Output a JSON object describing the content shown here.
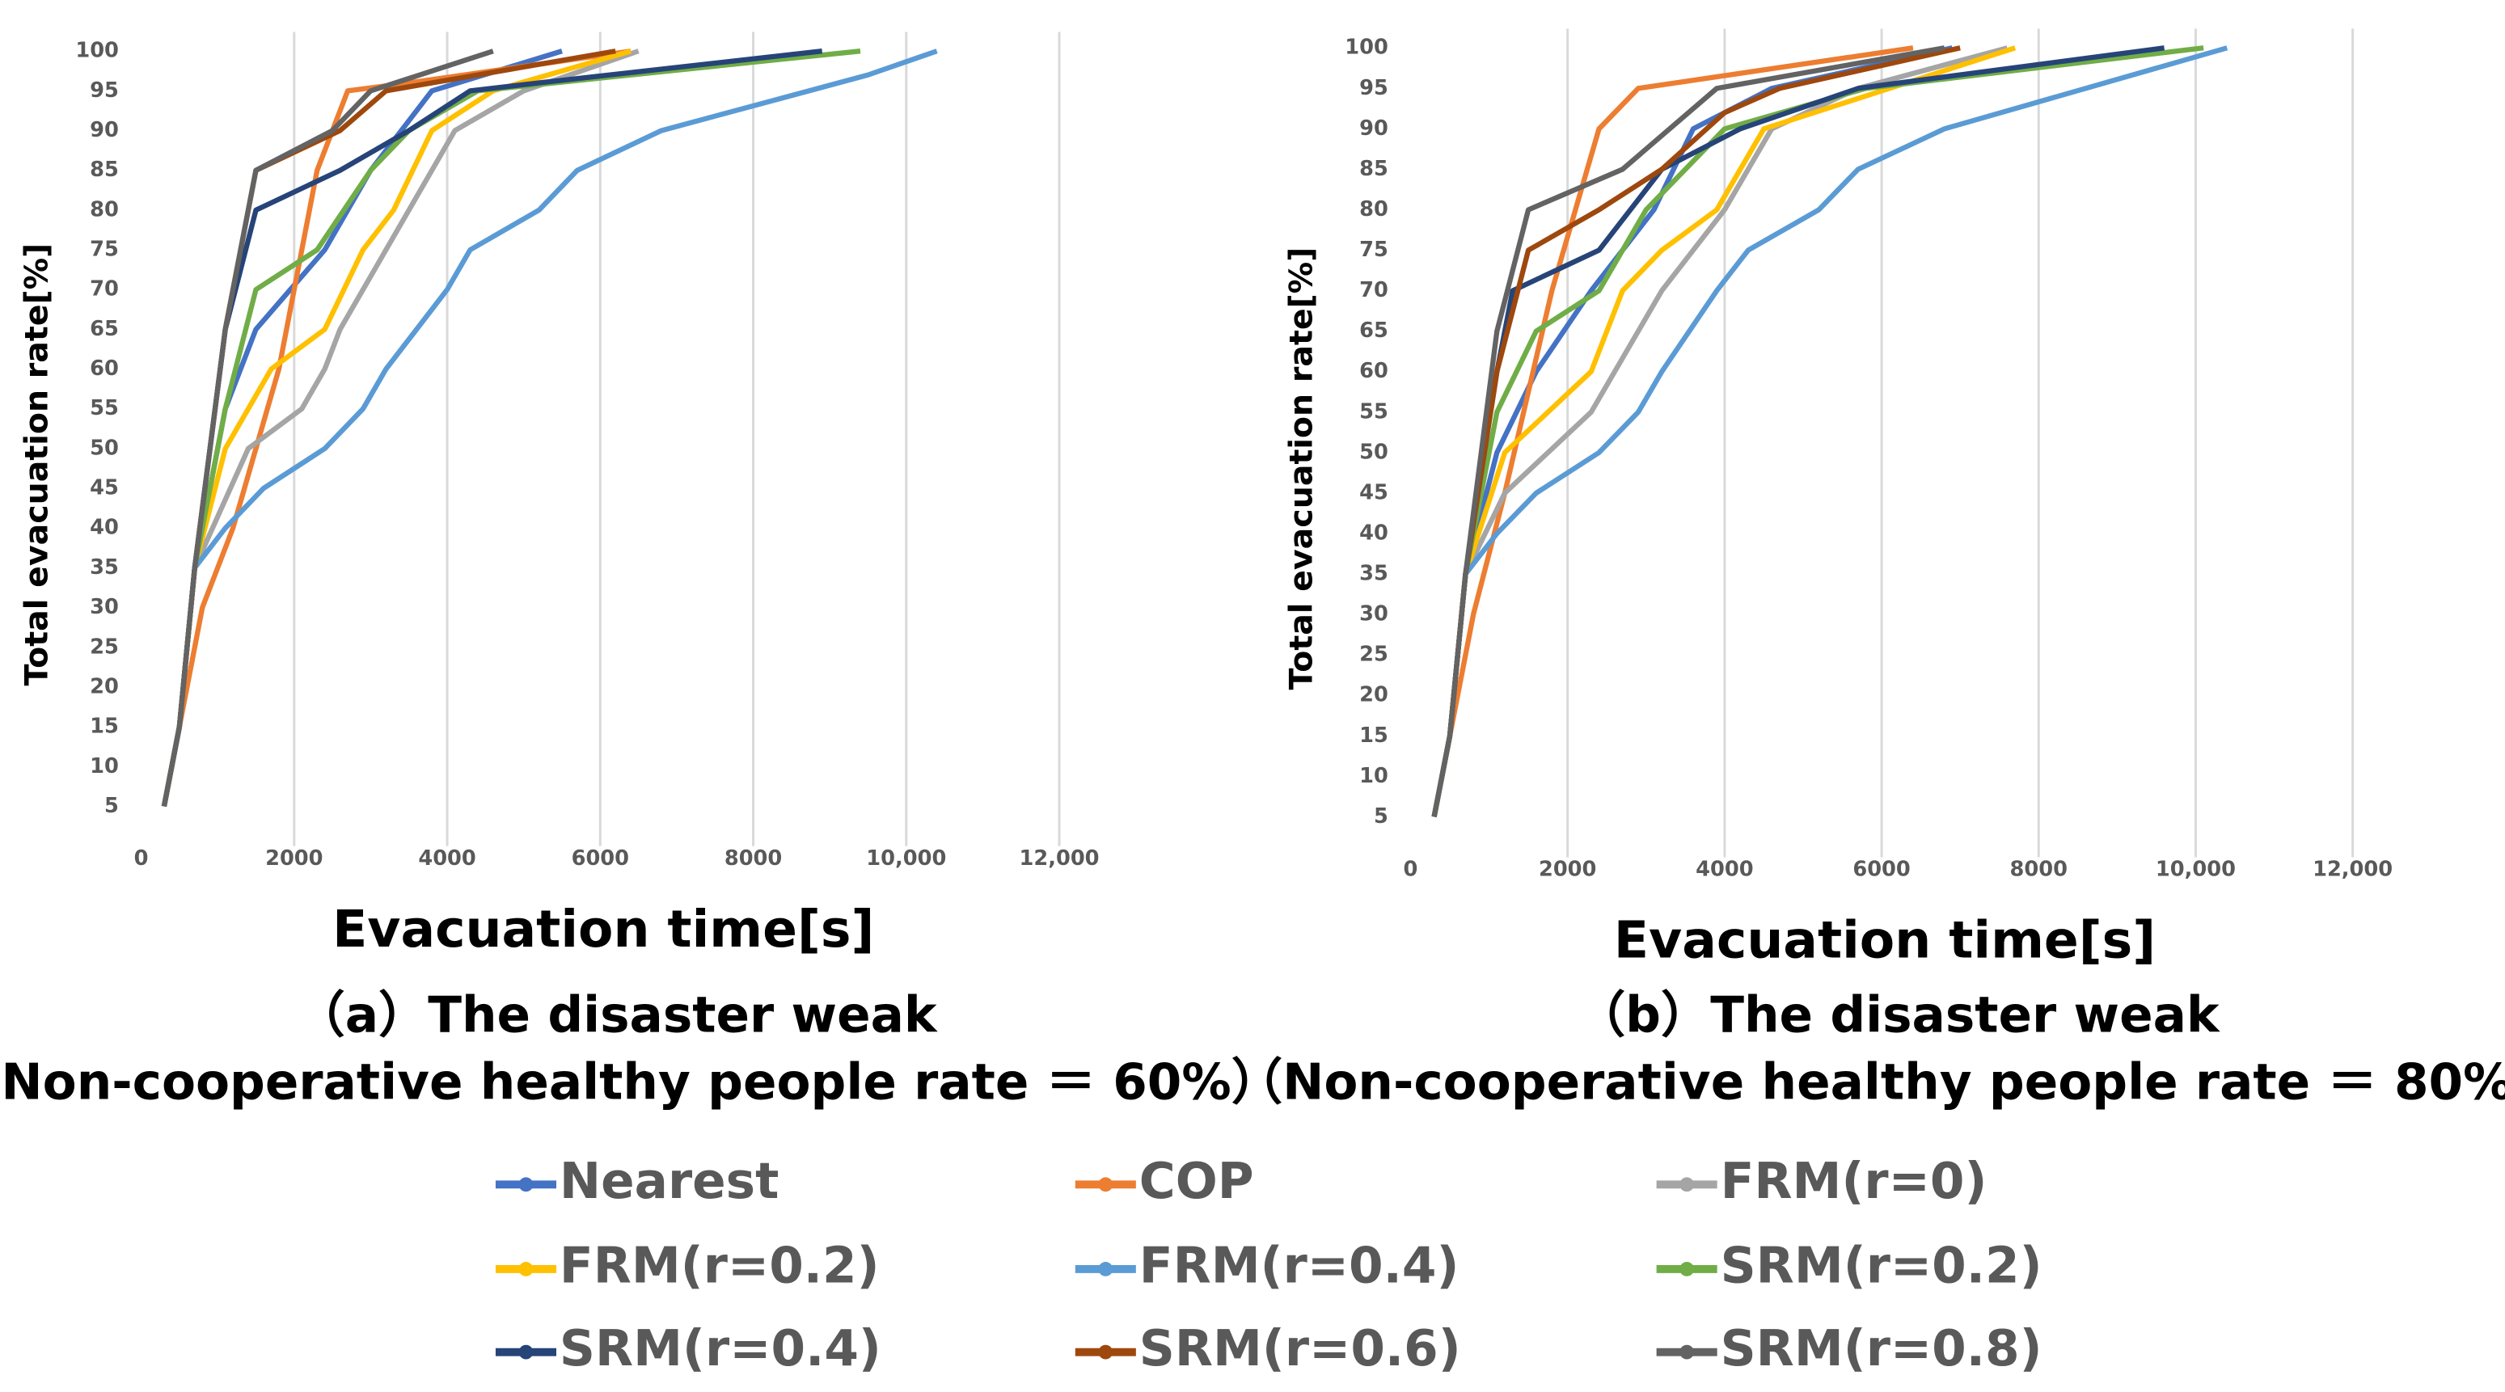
{
  "chart_data": [
    {
      "type": "line",
      "xlabel": "Evacuation time[s]",
      "ylabel": "Total evacuation rate[%]",
      "caption": [
        "（a）The disaster weak",
        "（Non-cooperative healthy people rate ＝ 60%）"
      ],
      "xlim": [
        0,
        12000
      ],
      "xticks": [
        0,
        2000,
        4000,
        6000,
        8000,
        {
          "value": 10000,
          "label": "10,000"
        },
        {
          "value": 12000,
          "label": "12,000"
        }
      ],
      "ylim": [
        0,
        100
      ],
      "yticks": [
        5,
        10,
        15,
        20,
        25,
        30,
        35,
        40,
        45,
        50,
        55,
        60,
        65,
        70,
        75,
        80,
        85,
        90,
        95,
        100
      ],
      "grid": true,
      "legend": "bottom",
      "series": [
        {
          "name": "Nearest",
          "color": "#4472c4",
          "x": [
            300,
            500,
            700,
            1100,
            1500,
            2400,
            3000,
            3800,
            5500
          ],
          "values": [
            5,
            15,
            35,
            55,
            65,
            75,
            85,
            95,
            100
          ]
        },
        {
          "name": "COP",
          "color": "#ed7d31",
          "x": [
            300,
            500,
            800,
            1200,
            1800,
            2300,
            2700,
            3500,
            6400
          ],
          "values": [
            5,
            15,
            30,
            40,
            60,
            85,
            95,
            96,
            100
          ]
        },
        {
          "name": "FRM(r=0)",
          "color": "#a5a5a5",
          "x": [
            300,
            500,
            700,
            1400,
            2100,
            2400,
            2600,
            3200,
            3800,
            4100,
            5000,
            6500
          ],
          "values": [
            5,
            15,
            35,
            50,
            55,
            60,
            65,
            75,
            85,
            90,
            95,
            100
          ]
        },
        {
          "name": "FRM(r=0.2)",
          "color": "#ffc000",
          "x": [
            300,
            500,
            700,
            1100,
            1700,
            2400,
            2900,
            3300,
            3800,
            4600,
            6400
          ],
          "values": [
            5,
            15,
            35,
            50,
            60,
            65,
            75,
            80,
            90,
            95,
            100
          ]
        },
        {
          "name": "FRM(r=0.4)",
          "color": "#5b9bd5",
          "x": [
            300,
            500,
            700,
            1100,
            1600,
            2400,
            2900,
            3200,
            4000,
            4300,
            5200,
            5700,
            6800,
            9500,
            10400
          ],
          "values": [
            5,
            15,
            35,
            40,
            45,
            50,
            55,
            60,
            70,
            75,
            80,
            85,
            90,
            97,
            100
          ]
        },
        {
          "name": "SRM(r=0.2)",
          "color": "#70ad47",
          "x": [
            300,
            500,
            700,
            1100,
            1500,
            2300,
            3000,
            3500,
            4400,
            9400
          ],
          "values": [
            5,
            15,
            35,
            55,
            70,
            75,
            85,
            90,
            95,
            100
          ]
        },
        {
          "name": "SRM(r=0.4)",
          "color": "#264478",
          "x": [
            300,
            500,
            700,
            1100,
            1500,
            2600,
            3500,
            4300,
            5200,
            8900
          ],
          "values": [
            5,
            15,
            35,
            65,
            80,
            85,
            90,
            95,
            96,
            100
          ]
        },
        {
          "name": "SRM(r=0.6)",
          "color": "#9e480e",
          "x": [
            300,
            500,
            700,
            1100,
            1500,
            2600,
            3200,
            6200
          ],
          "values": [
            5,
            15,
            35,
            65,
            85,
            90,
            95,
            100
          ]
        },
        {
          "name": "SRM(r=0.8)",
          "color": "#636363",
          "x": [
            300,
            500,
            700,
            1100,
            1500,
            2500,
            3000,
            4600
          ],
          "values": [
            5,
            15,
            35,
            65,
            85,
            90,
            95,
            100
          ]
        }
      ]
    },
    {
      "type": "line",
      "xlabel": "Evacuation time[s]",
      "ylabel": "Total evacuation rate[%]",
      "caption": [
        "（b）The disaster weak",
        "（Non-cooperative healthy people rate ＝ 80%）"
      ],
      "xlim": [
        0,
        12000
      ],
      "xticks": [
        0,
        2000,
        4000,
        6000,
        8000,
        {
          "value": 10000,
          "label": "10,000"
        },
        {
          "value": 12000,
          "label": "12,000"
        }
      ],
      "ylim": [
        0,
        100
      ],
      "yticks": [
        5,
        10,
        15,
        20,
        25,
        30,
        35,
        40,
        45,
        50,
        55,
        60,
        65,
        70,
        75,
        80,
        85,
        90,
        95,
        100
      ],
      "grid": true,
      "series": [
        {
          "name": "Nearest",
          "color": "#4472c4",
          "x": [
            300,
            500,
            700,
            1100,
            1600,
            2300,
            3100,
            3600,
            4600,
            6900
          ],
          "values": [
            5,
            15,
            35,
            50,
            60,
            70,
            80,
            90,
            95,
            100
          ]
        },
        {
          "name": "COP",
          "color": "#ed7d31",
          "x": [
            300,
            500,
            800,
            1200,
            1800,
            2400,
            2900,
            6400
          ],
          "values": [
            5,
            15,
            30,
            45,
            70,
            90,
            95,
            100
          ]
        },
        {
          "name": "FRM(r=0)",
          "color": "#a5a5a5",
          "x": [
            300,
            500,
            700,
            1200,
            2300,
            3200,
            4000,
            4600,
            5700,
            7600
          ],
          "values": [
            5,
            15,
            35,
            45,
            55,
            70,
            80,
            90,
            95,
            100
          ]
        },
        {
          "name": "FRM(r=0.2)",
          "color": "#ffc000",
          "x": [
            300,
            500,
            700,
            1200,
            2300,
            2700,
            3200,
            3900,
            4500,
            7700
          ],
          "values": [
            5,
            15,
            35,
            50,
            60,
            70,
            75,
            80,
            90,
            100
          ]
        },
        {
          "name": "FRM(r=0.4)",
          "color": "#5b9bd5",
          "x": [
            300,
            500,
            700,
            1100,
            1600,
            2400,
            2900,
            3200,
            3900,
            4300,
            5200,
            5700,
            6800,
            10400
          ],
          "values": [
            5,
            15,
            35,
            40,
            45,
            50,
            55,
            60,
            70,
            75,
            80,
            85,
            90,
            100
          ]
        },
        {
          "name": "SRM(r=0.2)",
          "color": "#70ad47",
          "x": [
            300,
            500,
            700,
            1100,
            1600,
            2400,
            3000,
            4000,
            5800,
            10100
          ],
          "values": [
            5,
            15,
            35,
            55,
            65,
            70,
            80,
            90,
            95,
            100
          ]
        },
        {
          "name": "SRM(r=0.4)",
          "color": "#264478",
          "x": [
            300,
            500,
            700,
            1100,
            1300,
            2400,
            3200,
            4200,
            5700,
            9600
          ],
          "values": [
            5,
            15,
            35,
            60,
            70,
            75,
            85,
            90,
            95,
            100
          ]
        },
        {
          "name": "SRM(r=0.6)",
          "color": "#9e480e",
          "x": [
            300,
            500,
            700,
            1100,
            1500,
            2400,
            3200,
            4000,
            4700,
            7000
          ],
          "values": [
            5,
            15,
            35,
            60,
            75,
            80,
            85,
            92,
            95,
            100
          ]
        },
        {
          "name": "SRM(r=0.8)",
          "color": "#636363",
          "x": [
            300,
            500,
            700,
            1100,
            1500,
            2700,
            3900,
            6800
          ],
          "values": [
            5,
            15,
            35,
            65,
            80,
            85,
            95,
            100
          ]
        }
      ]
    }
  ]
}
